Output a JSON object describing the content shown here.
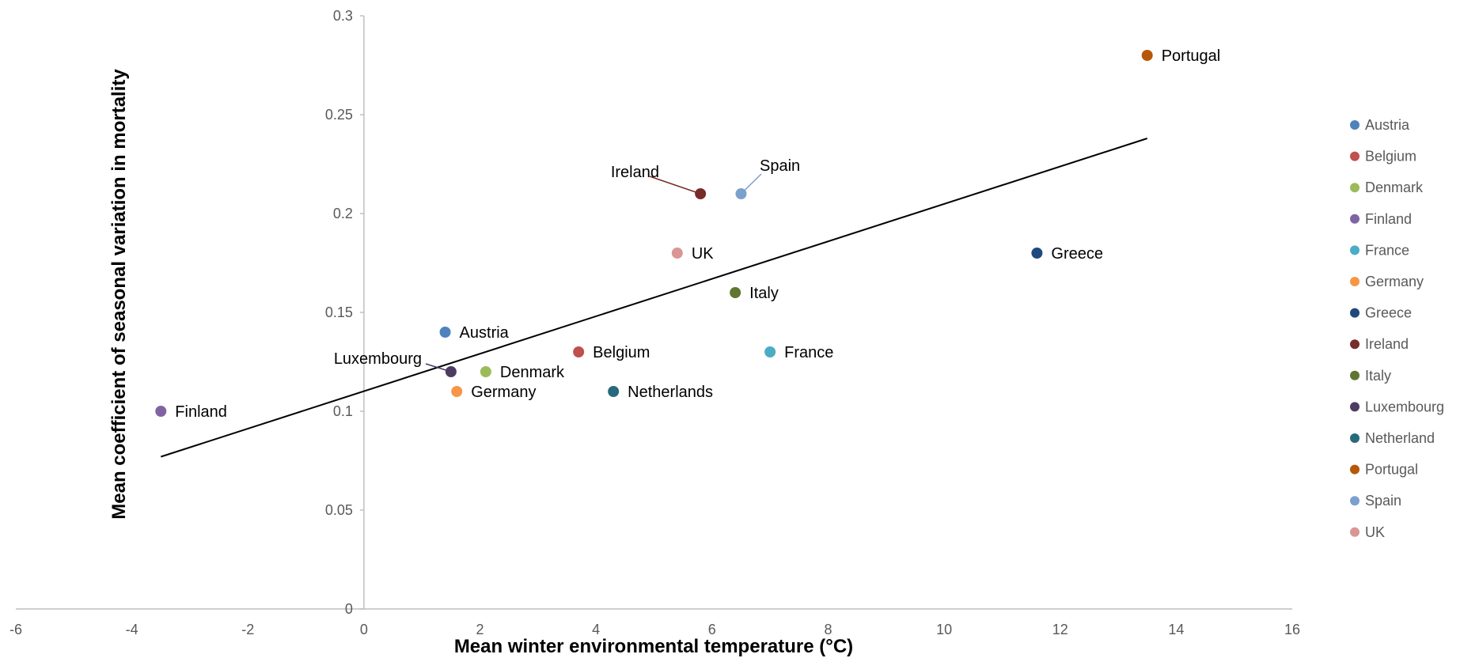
{
  "chart_data": {
    "type": "scatter",
    "title": "",
    "xlabel": "Mean winter environmental temperature (°C)",
    "ylabel": "Mean coefficient of seasonal variation in mortality",
    "xlim": [
      -6,
      16
    ],
    "ylim": [
      0,
      0.3
    ],
    "x_ticks": [
      "-6",
      "-4",
      "-2",
      "0",
      "2",
      "4",
      "6",
      "8",
      "10",
      "12",
      "14",
      "16"
    ],
    "y_ticks": [
      "0",
      "0.05",
      "0.1",
      "0.15",
      "0.2",
      "0.25",
      "0.3"
    ],
    "grid": false,
    "legend_position": "right",
    "points": [
      {
        "name": "Austria",
        "label": "Austria",
        "x": 1.4,
        "y": 0.14,
        "color": "#4f81bd"
      },
      {
        "name": "Belgium",
        "label": "Belgium",
        "x": 3.7,
        "y": 0.13,
        "color": "#c0504d"
      },
      {
        "name": "Denmark",
        "label": "Denmark",
        "x": 2.1,
        "y": 0.12,
        "color": "#9bbb59"
      },
      {
        "name": "Finland",
        "label": "Finland",
        "x": -3.5,
        "y": 0.1,
        "color": "#8064a2"
      },
      {
        "name": "France",
        "label": "France",
        "x": 7.0,
        "y": 0.13,
        "color": "#4bacc6"
      },
      {
        "name": "Germany",
        "label": "Germany",
        "x": 1.6,
        "y": 0.11,
        "color": "#f79646"
      },
      {
        "name": "Greece",
        "label": "Greece",
        "x": 11.6,
        "y": 0.18,
        "color": "#1f497d"
      },
      {
        "name": "Ireland",
        "label": "Ireland",
        "x": 5.8,
        "y": 0.21,
        "color": "#772c2a"
      },
      {
        "name": "Italy",
        "label": "Italy",
        "x": 6.4,
        "y": 0.16,
        "color": "#5f7530"
      },
      {
        "name": "Luxembourg",
        "label": "Luxembourg",
        "x": 1.5,
        "y": 0.12,
        "color": "#4d3b62"
      },
      {
        "name": "Netherland",
        "label": "Netherlands",
        "x": 4.3,
        "y": 0.11,
        "color": "#276a7c"
      },
      {
        "name": "Portugal",
        "label": "Portugal",
        "x": 13.5,
        "y": 0.28,
        "color": "#b65708"
      },
      {
        "name": "Spain",
        "label": "Spain",
        "x": 6.5,
        "y": 0.21,
        "color": "#7ba0cd"
      },
      {
        "name": "UK",
        "label": "UK",
        "x": 5.4,
        "y": 0.18,
        "color": "#d99694"
      }
    ],
    "trendline": {
      "type": "linear",
      "x": [
        -3.5,
        13.5
      ],
      "y": [
        0.077,
        0.238
      ],
      "color": "#000000"
    }
  }
}
